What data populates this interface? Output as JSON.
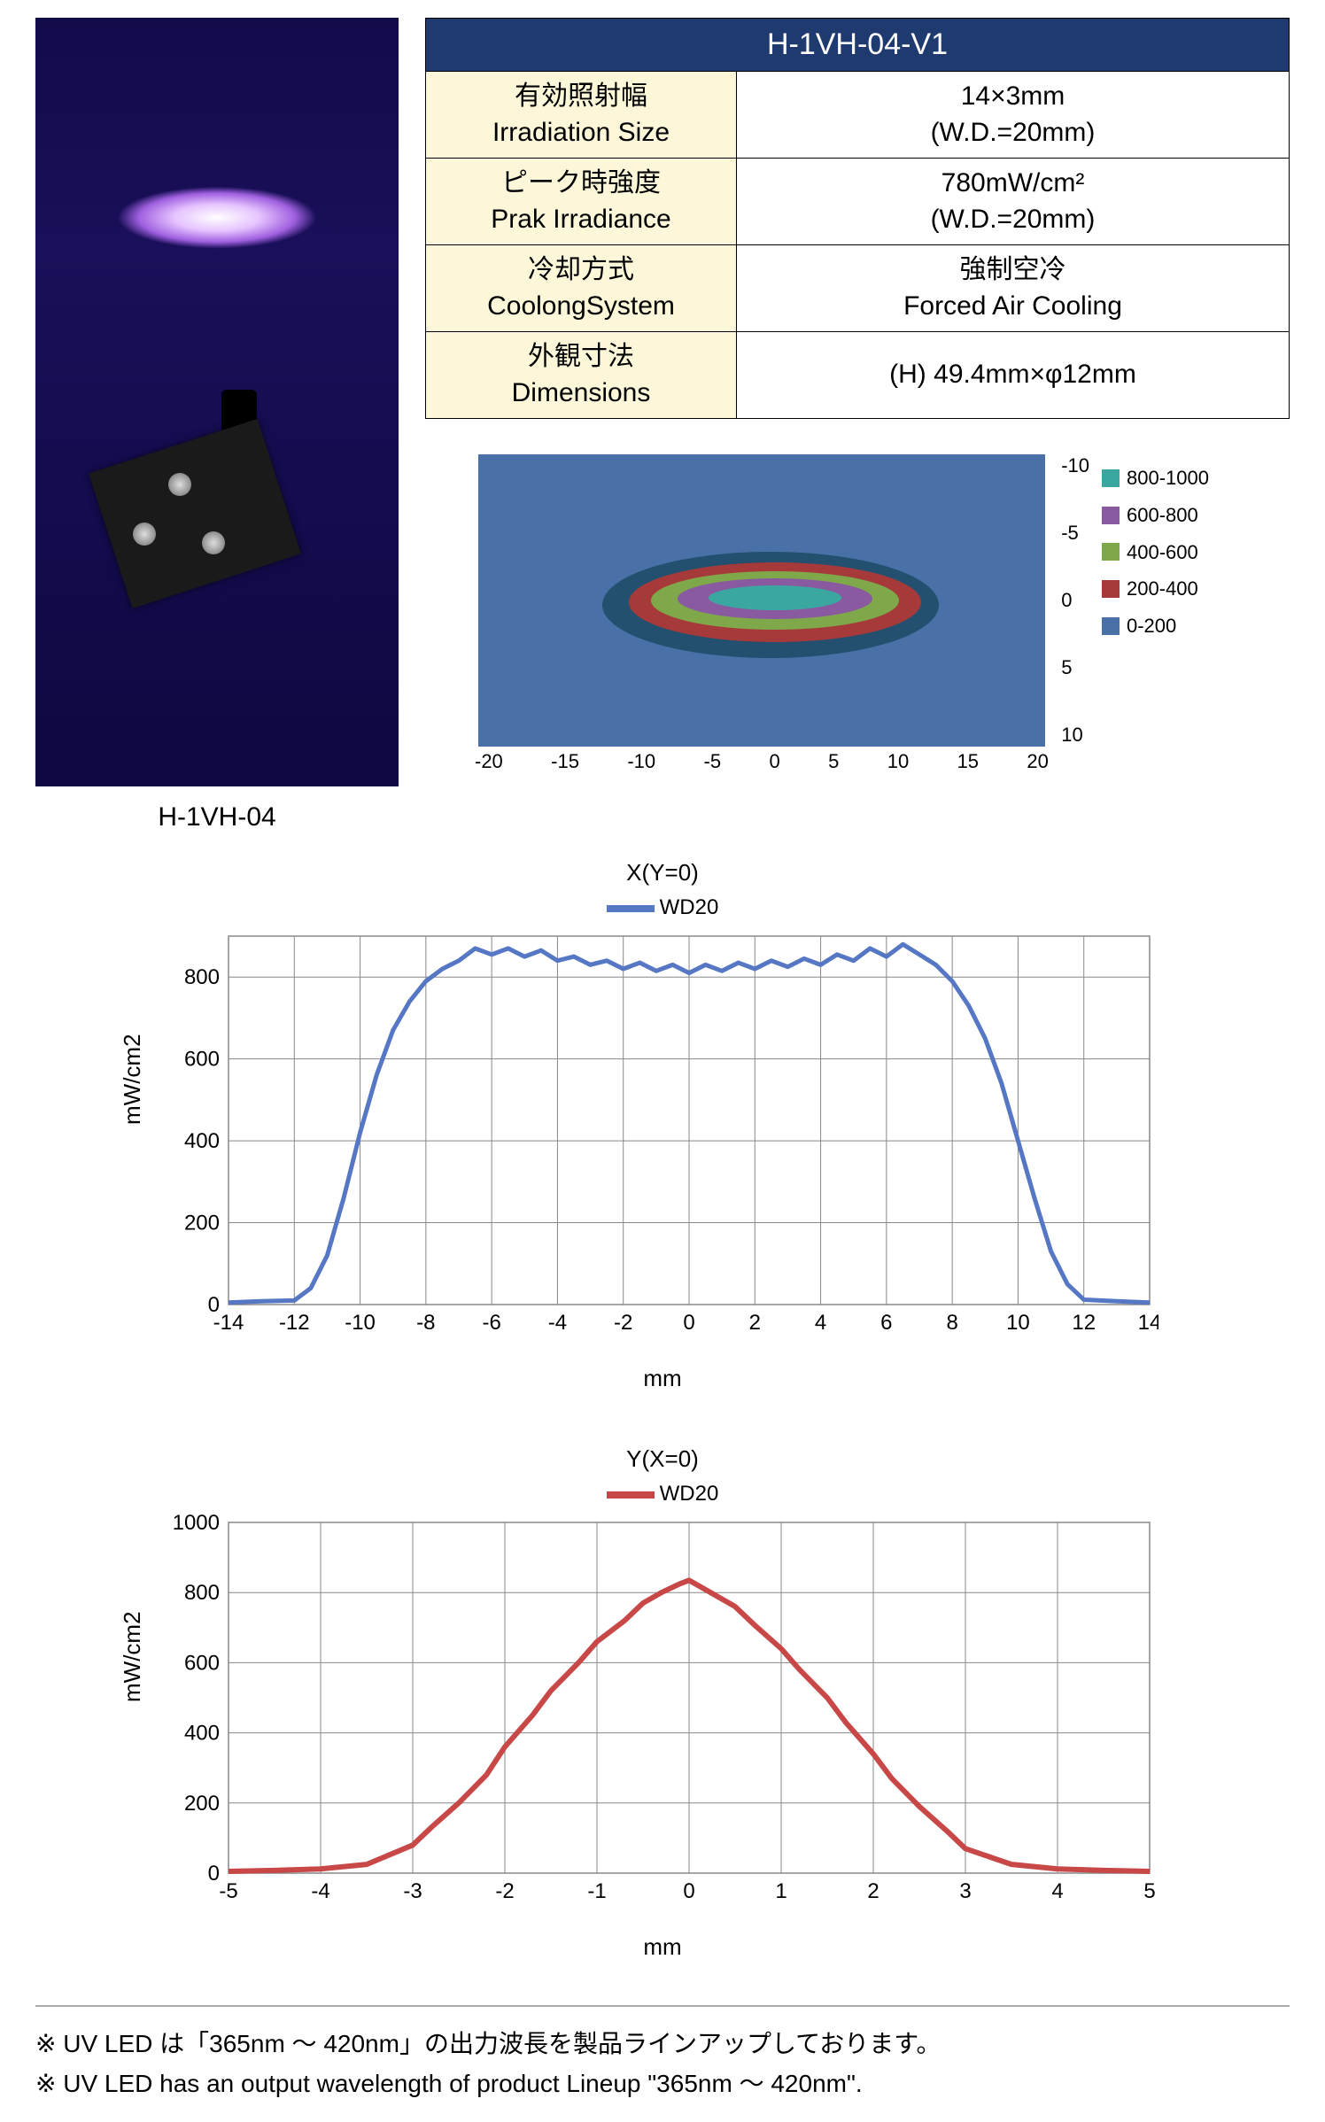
{
  "product_photo_caption": "H-1VH-04",
  "spec_table": {
    "header": "H-1VH-04-V1",
    "rows": [
      {
        "label_jp": "有効照射幅",
        "label_en": "Irradiation Size",
        "value_l1": "14×3mm",
        "value_l2": "(W.D.=20mm)"
      },
      {
        "label_jp": "ピーク時強度",
        "label_en": "Prak Irradiance",
        "value_l1": "780mW/cm²",
        "value_l2": "(W.D.=20mm)"
      },
      {
        "label_jp": "冷却方式",
        "label_en": "CoolongSystem",
        "value_l1": "強制空冷",
        "value_l2": "Forced Air Cooling"
      },
      {
        "label_jp": "外観寸法",
        "label_en": "Dimensions",
        "value_l1": "(H) 49.4mm×φ12mm",
        "value_l2": ""
      }
    ]
  },
  "heatmap": {
    "x_ticks": [
      "-20",
      "-15",
      "-10",
      "-5",
      "0",
      "5",
      "10",
      "15",
      "20"
    ],
    "y_ticks": [
      "-10",
      "-5",
      "0",
      "5",
      "10"
    ],
    "legend": [
      {
        "label": "800-1000",
        "color": "#3aa8a0"
      },
      {
        "label": "600-800",
        "color": "#8a5aa0"
      },
      {
        "label": "400-600",
        "color": "#7ea84a"
      },
      {
        "label": "200-400",
        "color": "#a63a3a"
      },
      {
        "label": "0-200",
        "color": "#4a70a8"
      }
    ]
  },
  "chart_x": {
    "title": "X(Y=0)",
    "series_label": "WD20",
    "series_color": "#5577c4",
    "y_label": "mW/cm2",
    "x_label": "mm",
    "x_ticks": [
      -14,
      -12,
      -10,
      -8,
      -6,
      -4,
      -2,
      0,
      2,
      4,
      6,
      8,
      10,
      12,
      14
    ],
    "y_ticks": [
      0,
      200,
      400,
      600,
      800
    ],
    "xlim": [
      -14,
      14
    ],
    "ylim": [
      0,
      900
    ],
    "line_width": 5,
    "data": [
      [
        -14,
        5
      ],
      [
        -13,
        8
      ],
      [
        -12,
        10
      ],
      [
        -11.5,
        40
      ],
      [
        -11,
        120
      ],
      [
        -10.5,
        260
      ],
      [
        -10,
        420
      ],
      [
        -9.5,
        560
      ],
      [
        -9,
        670
      ],
      [
        -8.5,
        740
      ],
      [
        -8,
        790
      ],
      [
        -7.5,
        820
      ],
      [
        -7,
        840
      ],
      [
        -6.5,
        870
      ],
      [
        -6,
        855
      ],
      [
        -5.5,
        870
      ],
      [
        -5,
        850
      ],
      [
        -4.5,
        865
      ],
      [
        -4,
        840
      ],
      [
        -3.5,
        850
      ],
      [
        -3,
        830
      ],
      [
        -2.5,
        840
      ],
      [
        -2,
        820
      ],
      [
        -1.5,
        835
      ],
      [
        -1,
        815
      ],
      [
        -0.5,
        830
      ],
      [
        0,
        810
      ],
      [
        0.5,
        830
      ],
      [
        1,
        815
      ],
      [
        1.5,
        835
      ],
      [
        2,
        820
      ],
      [
        2.5,
        840
      ],
      [
        3,
        825
      ],
      [
        3.5,
        845
      ],
      [
        4,
        830
      ],
      [
        4.5,
        855
      ],
      [
        5,
        840
      ],
      [
        5.5,
        870
      ],
      [
        6,
        850
      ],
      [
        6.5,
        880
      ],
      [
        7,
        855
      ],
      [
        7.5,
        830
      ],
      [
        8,
        790
      ],
      [
        8.5,
        730
      ],
      [
        9,
        650
      ],
      [
        9.5,
        540
      ],
      [
        10,
        400
      ],
      [
        10.5,
        260
      ],
      [
        11,
        130
      ],
      [
        11.5,
        50
      ],
      [
        12,
        12
      ],
      [
        13,
        8
      ],
      [
        14,
        5
      ]
    ]
  },
  "chart_y": {
    "title": "Y(X=0)",
    "series_label": "WD20",
    "series_color": "#c84848",
    "y_label": "mW/cm2",
    "x_label": "mm",
    "x_ticks": [
      -5,
      -4,
      -3,
      -2,
      -1,
      0,
      1,
      2,
      3,
      4,
      5
    ],
    "y_ticks": [
      0,
      200,
      400,
      600,
      800,
      1000
    ],
    "xlim": [
      -5,
      5
    ],
    "ylim": [
      0,
      1000
    ],
    "line_width": 6,
    "data": [
      [
        -5,
        5
      ],
      [
        -4.5,
        8
      ],
      [
        -4,
        12
      ],
      [
        -3.5,
        25
      ],
      [
        -3,
        80
      ],
      [
        -2.8,
        130
      ],
      [
        -2.5,
        200
      ],
      [
        -2.2,
        280
      ],
      [
        -2,
        360
      ],
      [
        -1.7,
        450
      ],
      [
        -1.5,
        520
      ],
      [
        -1.2,
        600
      ],
      [
        -1,
        660
      ],
      [
        -0.7,
        720
      ],
      [
        -0.5,
        770
      ],
      [
        -0.3,
        800
      ],
      [
        -0.1,
        825
      ],
      [
        0,
        835
      ],
      [
        0.1,
        820
      ],
      [
        0.3,
        790
      ],
      [
        0.5,
        760
      ],
      [
        0.7,
        710
      ],
      [
        1,
        640
      ],
      [
        1.2,
        580
      ],
      [
        1.5,
        500
      ],
      [
        1.7,
        430
      ],
      [
        2,
        340
      ],
      [
        2.2,
        270
      ],
      [
        2.5,
        190
      ],
      [
        2.8,
        120
      ],
      [
        3,
        70
      ],
      [
        3.5,
        25
      ],
      [
        4,
        12
      ],
      [
        4.5,
        8
      ],
      [
        5,
        5
      ]
    ]
  },
  "footnotes": {
    "jp": "※ UV LED は「365nm ～ 420nm」の出力波長を製品ラインアップしております。",
    "en": "※ UV LED has an output wavelength of product Lineup \"365nm ～ 420nm\"."
  }
}
